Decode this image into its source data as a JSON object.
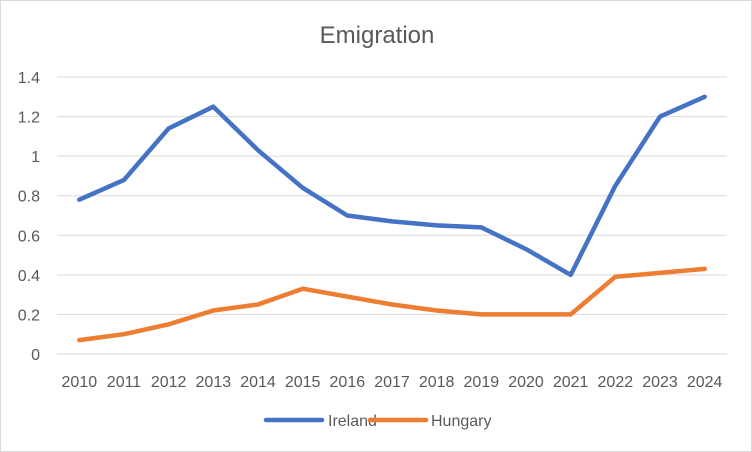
{
  "chart_data": {
    "type": "line",
    "title": "Emigration",
    "xlabel": "",
    "ylabel": "",
    "x": [
      "2010",
      "2011",
      "2012",
      "2013",
      "2014",
      "2015",
      "2016",
      "2017",
      "2018",
      "2019",
      "2020",
      "2021",
      "2022",
      "2023",
      "2024"
    ],
    "ylim": [
      0,
      1.4
    ],
    "yticks": [
      0,
      0.2,
      0.4,
      0.6,
      0.8,
      1,
      1.2,
      1.4
    ],
    "ytick_labels": [
      "0",
      "0.2",
      "0.4",
      "0.6",
      "0.8",
      "1",
      "1.2",
      "1.4"
    ],
    "grid": true,
    "legend_position": "bottom",
    "series": [
      {
        "name": "Ireland",
        "color": "#4472c4",
        "values": [
          0.78,
          0.88,
          1.14,
          1.25,
          1.03,
          0.84,
          0.7,
          0.67,
          0.65,
          0.64,
          0.53,
          0.4,
          0.85,
          1.2,
          1.3
        ]
      },
      {
        "name": "Hungary",
        "color": "#ed7d31",
        "values": [
          0.07,
          0.1,
          0.15,
          0.22,
          0.25,
          0.33,
          0.29,
          0.25,
          0.22,
          0.2,
          0.2,
          0.2,
          0.39,
          0.41,
          0.43
        ]
      }
    ]
  }
}
